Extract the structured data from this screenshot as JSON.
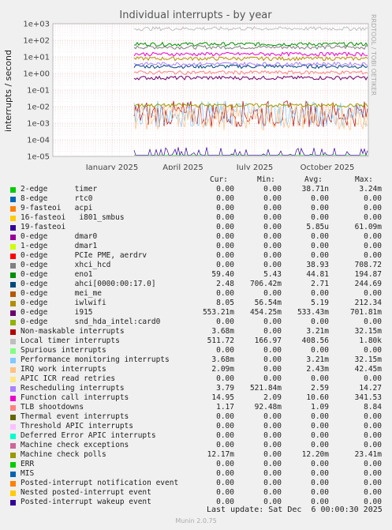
{
  "chart_data": {
    "type": "line",
    "title": "Individual interrupts - by year",
    "ylabel": "interrupts / second",
    "yscale": "log",
    "ylim": [
      1e-05,
      1000
    ],
    "yticks": [
      "1e+03",
      "1e+02",
      "1e+01",
      "1e+00",
      "1e-01",
      "1e-02",
      "1e-03",
      "1e-04",
      "1e-05"
    ],
    "xticks": [
      "January 2025",
      "April 2025",
      "July 2025",
      "October 2025"
    ],
    "grid": true,
    "legend_placement": "below",
    "side_text": "RRDTOOL / TOBI OETIKER",
    "columns": [
      "Cur:",
      "Min:",
      "Avg:",
      "Max:"
    ],
    "series": [
      {
        "name": "2-edge      timer",
        "color": "#00cc00",
        "cur": "0.00",
        "min": "0.00",
        "avg": "38.71n",
        "max": "3.24m"
      },
      {
        "name": "8-edge      rtc0",
        "color": "#0066b3",
        "cur": "0.00",
        "min": "0.00",
        "avg": "0.00",
        "max": "0.00"
      },
      {
        "name": "9-fasteoi   acpi",
        "color": "#ff8000",
        "cur": "0.00",
        "min": "0.00",
        "avg": "0.00",
        "max": "0.00"
      },
      {
        "name": "16-fasteoi   i801_smbus",
        "color": "#ffcc00",
        "cur": "0.00",
        "min": "0.00",
        "avg": "0.00",
        "max": "0.00"
      },
      {
        "name": "19-fasteoi",
        "color": "#330099",
        "cur": "0.00",
        "min": "0.00",
        "avg": "5.85u",
        "max": "61.09m"
      },
      {
        "name": "0-edge      dmar0",
        "color": "#990099",
        "cur": "0.00",
        "min": "0.00",
        "avg": "0.00",
        "max": "0.00"
      },
      {
        "name": "1-edge      dmar1",
        "color": "#ccff00",
        "cur": "0.00",
        "min": "0.00",
        "avg": "0.00",
        "max": "0.00"
      },
      {
        "name": "0-edge      PCIe PME, aerdrv",
        "color": "#ff0000",
        "cur": "0.00",
        "min": "0.00",
        "avg": "0.00",
        "max": "0.00"
      },
      {
        "name": "0-edge      xhci_hcd",
        "color": "#808080",
        "cur": "0.00",
        "min": "0.00",
        "avg": "38.93",
        "max": "708.72"
      },
      {
        "name": "0-edge      eno1",
        "color": "#008f00",
        "cur": "59.40",
        "min": "5.43",
        "avg": "44.81",
        "max": "194.87"
      },
      {
        "name": "0-edge      ahci[0000:00:17.0]",
        "color": "#00487d",
        "cur": "2.48",
        "min": "706.42m",
        "avg": "2.71",
        "max": "244.69"
      },
      {
        "name": "0-edge      mei_me",
        "color": "#b35a00",
        "cur": "0.00",
        "min": "0.00",
        "avg": "0.00",
        "max": "0.00"
      },
      {
        "name": "0-edge      iwlwifi",
        "color": "#b38f00",
        "cur": "8.05",
        "min": "56.54m",
        "avg": "5.19",
        "max": "212.34"
      },
      {
        "name": "0-edge      i915",
        "color": "#6b006b",
        "cur": "553.21m",
        "min": "454.25m",
        "avg": "533.43m",
        "max": "701.81m"
      },
      {
        "name": "0-edge      snd_hda_intel:card0",
        "color": "#8fb300",
        "cur": "0.00",
        "min": "0.00",
        "avg": "0.00",
        "max": "0.00"
      },
      {
        "name": "Non-maskable interrupts",
        "color": "#b30000",
        "cur": "3.68m",
        "min": "0.00",
        "avg": "3.21m",
        "max": "32.15m"
      },
      {
        "name": "Local timer interrupts",
        "color": "#bebebe",
        "cur": "511.72",
        "min": "166.97",
        "avg": "408.56",
        "max": "1.80k"
      },
      {
        "name": "Spurious interrupts",
        "color": "#80ff80",
        "cur": "0.00",
        "min": "0.00",
        "avg": "0.00",
        "max": "0.00"
      },
      {
        "name": "Performance monitoring interrupts",
        "color": "#80c9ff",
        "cur": "3.68m",
        "min": "0.00",
        "avg": "3.21m",
        "max": "32.15m"
      },
      {
        "name": "IRQ work interrupts",
        "color": "#ffc080",
        "cur": "2.09m",
        "min": "0.00",
        "avg": "2.43m",
        "max": "42.45m"
      },
      {
        "name": "APIC ICR read retries",
        "color": "#ffe680",
        "cur": "0.00",
        "min": "0.00",
        "avg": "0.00",
        "max": "0.00"
      },
      {
        "name": "Rescheduling interrupts",
        "color": "#aa80ff",
        "cur": "3.79",
        "min": "521.84m",
        "avg": "2.59",
        "max": "14.27"
      },
      {
        "name": "Function call interrupts",
        "color": "#ee00cc",
        "cur": "14.95",
        "min": "2.09",
        "avg": "10.60",
        "max": "341.53"
      },
      {
        "name": "TLB shootdowns",
        "color": "#ff8080",
        "cur": "1.17",
        "min": "92.48m",
        "avg": "1.09",
        "max": "8.84"
      },
      {
        "name": "Thermal event interrupts",
        "color": "#666600",
        "cur": "0.00",
        "min": "0.00",
        "avg": "0.00",
        "max": "0.00"
      },
      {
        "name": "Threshold APIC interrupts",
        "color": "#ffbfff",
        "cur": "0.00",
        "min": "0.00",
        "avg": "0.00",
        "max": "0.00"
      },
      {
        "name": "Deferred Error APIC interrupts",
        "color": "#00ffcc",
        "cur": "0.00",
        "min": "0.00",
        "avg": "0.00",
        "max": "0.00"
      },
      {
        "name": "Machine check exceptions",
        "color": "#cc6699",
        "cur": "0.00",
        "min": "0.00",
        "avg": "0.00",
        "max": "0.00"
      },
      {
        "name": "Machine check polls",
        "color": "#999900",
        "cur": "12.17m",
        "min": "0.00",
        "avg": "12.20m",
        "max": "23.41m"
      },
      {
        "name": "ERR",
        "color": "#00cc00",
        "cur": "0.00",
        "min": "0.00",
        "avg": "0.00",
        "max": "0.00"
      },
      {
        "name": "MIS",
        "color": "#0066b3",
        "cur": "0.00",
        "min": "0.00",
        "avg": "0.00",
        "max": "0.00"
      },
      {
        "name": "Posted-interrupt notification event",
        "color": "#ff8000",
        "cur": "0.00",
        "min": "0.00",
        "avg": "0.00",
        "max": "0.00"
      },
      {
        "name": "Nested posted-interrupt event",
        "color": "#ffcc00",
        "cur": "0.00",
        "min": "0.00",
        "avg": "0.00",
        "max": "0.00"
      },
      {
        "name": "Posted-interrupt wakeup event",
        "color": "#330099",
        "cur": "0.00",
        "min": "0.00",
        "avg": "0.00",
        "max": "0.00"
      }
    ]
  },
  "footer": {
    "last_update": "Last update: Sat Dec  6 00:00:30 2025",
    "version": "Munin 2.0.75"
  }
}
